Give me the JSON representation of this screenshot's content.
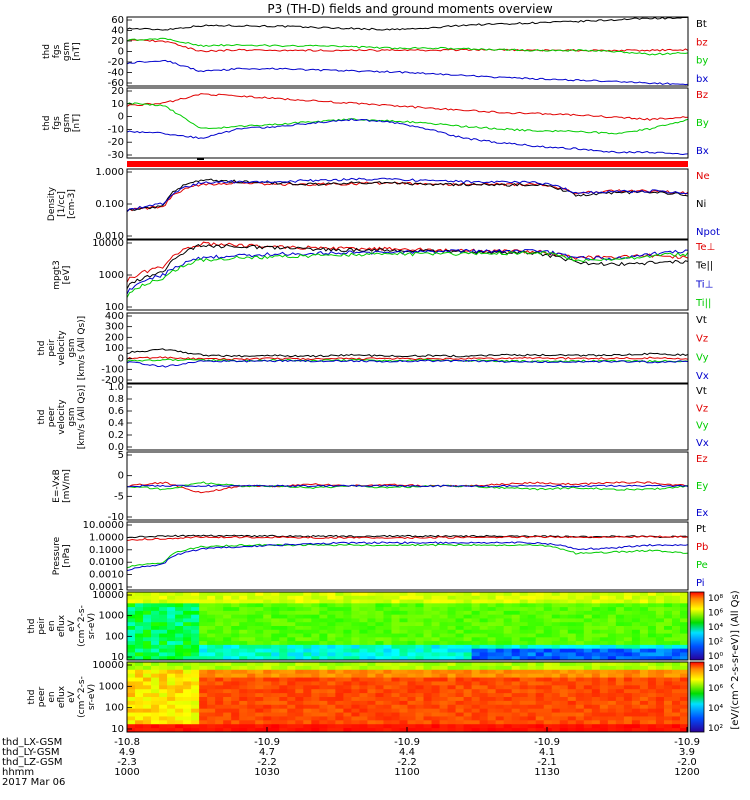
{
  "figure_title": "P3 (TH-D) fields and ground moments overview",
  "colors": {
    "black": "#000000",
    "red": "#e00000",
    "green": "#00cc00",
    "blue": "#0000cc",
    "cb_low": "#2a0099",
    "cb_high": "#ff0000"
  },
  "chart_data": [
    {
      "type": "line",
      "ylabel_lines": [
        "thd",
        "fgs",
        "gsm",
        "[nT]"
      ],
      "yticks": [
        "60",
        "40",
        "20",
        "0",
        "-20",
        "-40",
        "-60"
      ],
      "ylim": [
        -60,
        60
      ],
      "series": [
        {
          "name": "Bt",
          "color": "#000000",
          "values": [
            40,
            38,
            45,
            45,
            44,
            42,
            40,
            38,
            40,
            46,
            48,
            50,
            52,
            55,
            58,
            58
          ]
        },
        {
          "name": "bz",
          "color": "#e00000",
          "values": [
            20,
            18,
            0,
            3,
            2,
            2,
            2,
            2,
            2,
            3,
            3,
            2,
            2,
            2,
            2,
            3
          ]
        },
        {
          "name": "by",
          "color": "#00cc00",
          "values": [
            20,
            22,
            10,
            12,
            10,
            10,
            8,
            6,
            6,
            5,
            3,
            2,
            2,
            0,
            -5,
            -2
          ]
        },
        {
          "name": "bx",
          "color": "#0000cc",
          "values": [
            -20,
            -15,
            -35,
            -30,
            -30,
            -32,
            -34,
            -35,
            -38,
            -42,
            -45,
            -48,
            -50,
            -52,
            -55,
            -57
          ]
        }
      ]
    },
    {
      "type": "line",
      "ylabel_lines": [
        "thd",
        "fgs",
        "gsm",
        "[nT]"
      ],
      "yticks": [
        "20",
        "10",
        "0",
        "-10",
        "-20",
        "-30"
      ],
      "ylim": [
        -35,
        25
      ],
      "series": [
        {
          "name": "Bz",
          "color": "#e00000",
          "values": [
            10,
            12,
            20,
            18,
            16,
            14,
            12,
            10,
            8,
            6,
            4,
            3,
            2,
            0,
            -2,
            0
          ]
        },
        {
          "name": "By",
          "color": "#00cc00",
          "values": [
            12,
            10,
            -10,
            -8,
            -6,
            -4,
            -2,
            -3,
            -5,
            -8,
            -10,
            -12,
            -12,
            -14,
            -10,
            -2
          ]
        },
        {
          "name": "Bx",
          "color": "#0000cc",
          "values": [
            -12,
            -14,
            -18,
            -10,
            -8,
            -5,
            -2,
            -4,
            -10,
            -18,
            -22,
            -25,
            -27,
            -30,
            -30,
            -32
          ]
        }
      ]
    },
    {
      "type": "line",
      "log_scale": true,
      "ylabel_lines": [
        "Density",
        "[1/cc]",
        "[cm-3]"
      ],
      "yticks": [
        "1.000",
        "0.100",
        "0.010"
      ],
      "ylim": [
        0.001,
        1.5
      ],
      "series": [
        {
          "name": "Ne",
          "color": "#e00000",
          "values": [
            0.02,
            0.03,
            0.3,
            0.35,
            0.3,
            0.3,
            0.32,
            0.35,
            0.3,
            0.3,
            0.3,
            0.3,
            0.12,
            0.15,
            0.15,
            0.12
          ]
        },
        {
          "name": "Ni",
          "color": "#000000",
          "values": [
            0.02,
            0.03,
            0.5,
            0.4,
            0.35,
            0.3,
            0.35,
            0.35,
            0.3,
            0.3,
            0.28,
            0.3,
            0.1,
            0.12,
            0.14,
            0.1
          ]
        },
        {
          "name": "Npot",
          "color": "#0000cc",
          "values": [
            0.02,
            0.04,
            0.35,
            0.4,
            0.4,
            0.45,
            0.5,
            0.5,
            0.45,
            0.4,
            0.4,
            0.35,
            0.12,
            0.14,
            0.15,
            0.12
          ]
        }
      ]
    },
    {
      "type": "line",
      "log_scale": true,
      "ylabel_lines": [
        "mpgt3",
        "[eV]"
      ],
      "yticks": [
        "10000",
        "1000",
        "100"
      ],
      "ylim": [
        50,
        12000
      ],
      "series": [
        {
          "name": "Te⊥",
          "color": "#e00000",
          "values": [
            500,
            1500,
            9000,
            8000,
            7000,
            6500,
            6000,
            6000,
            5500,
            5200,
            5000,
            4800,
            3000,
            3200,
            3500,
            3000
          ]
        },
        {
          "name": "Te||",
          "color": "#000000",
          "values": [
            300,
            1000,
            8000,
            7000,
            6500,
            6000,
            5500,
            5500,
            5000,
            4800,
            4500,
            4200,
            2000,
            1800,
            2000,
            2200
          ]
        },
        {
          "name": "Ti⊥",
          "color": "#0000cc",
          "values": [
            200,
            800,
            3000,
            3500,
            4000,
            4200,
            4500,
            4500,
            4800,
            5000,
            5000,
            5200,
            3000,
            2800,
            4000,
            5000
          ]
        },
        {
          "name": "Ti||",
          "color": "#00cc00",
          "values": [
            150,
            600,
            2500,
            3000,
            3200,
            3500,
            3800,
            4000,
            4000,
            4200,
            4200,
            4500,
            2500,
            2500,
            3500,
            4000
          ]
        }
      ]
    },
    {
      "type": "line",
      "ylabel_lines": [
        "thd",
        "peir",
        "velocity",
        "gsm",
        "[km/s (All Qs)]"
      ],
      "yticks": [
        "400",
        "300",
        "200",
        "100",
        "0",
        "-100",
        "-200"
      ],
      "ylim": [
        -200,
        400
      ],
      "series": [
        {
          "name": "Vt",
          "color": "#000000",
          "values": [
            60,
            90,
            40,
            30,
            35,
            30,
            40,
            30,
            35,
            30,
            40,
            40,
            35,
            40,
            50,
            40
          ]
        },
        {
          "name": "Vz",
          "color": "#e00000",
          "values": [
            10,
            20,
            5,
            5,
            10,
            5,
            8,
            10,
            5,
            8,
            10,
            15,
            10,
            12,
            15,
            10
          ]
        },
        {
          "name": "Vy",
          "color": "#00cc00",
          "values": [
            -10,
            0,
            -5,
            -10,
            -5,
            -8,
            -5,
            -10,
            -5,
            -8,
            -10,
            -15,
            -12,
            -10,
            -15,
            -10
          ]
        },
        {
          "name": "Vx",
          "color": "#0000cc",
          "values": [
            -20,
            -60,
            -10,
            -15,
            -10,
            -12,
            -10,
            -15,
            -10,
            -12,
            -15,
            -20,
            -18,
            -15,
            -20,
            -15
          ]
        }
      ]
    },
    {
      "type": "line",
      "ylabel_lines": [
        "thd",
        "peer",
        "velocity",
        "gsm",
        "[km/s (All Qs)]"
      ],
      "yticks": [
        "1.0",
        "0.8",
        "0.6",
        "0.4",
        "0.2",
        "0.0"
      ],
      "ylim": [
        0,
        1
      ],
      "series": [
        {
          "name": "Vt",
          "color": "#000000",
          "values": []
        },
        {
          "name": "Vz",
          "color": "#e00000",
          "values": []
        },
        {
          "name": "Vy",
          "color": "#00cc00",
          "values": []
        },
        {
          "name": "Vx",
          "color": "#0000cc",
          "values": []
        }
      ]
    },
    {
      "type": "line",
      "ylabel_lines": [
        "E=-VxB",
        "[mV/m]"
      ],
      "yticks": [
        "5",
        "0",
        "-5",
        "-10"
      ],
      "ylim": [
        -10,
        10
      ],
      "series": [
        {
          "name": "Ez",
          "color": "#e00000",
          "values": [
            0,
            1,
            -2,
            0,
            0,
            0.5,
            0,
            0.5,
            0,
            0,
            0.5,
            1,
            0.5,
            1,
            1,
            0
          ]
        },
        {
          "name": "Ey",
          "color": "#00cc00",
          "values": [
            0,
            -1,
            1,
            0,
            0,
            -0.5,
            0,
            -0.5,
            0,
            0,
            -0.5,
            -1,
            -0.5,
            -1,
            -1,
            0
          ]
        },
        {
          "name": "Ex",
          "color": "#0000cc",
          "values": [
            0,
            0,
            0,
            0,
            0,
            0,
            0,
            0,
            0,
            0,
            0,
            0,
            0,
            0,
            0,
            0
          ]
        }
      ]
    },
    {
      "type": "line",
      "log_scale": true,
      "ylabel_lines": [
        "Pressure",
        "[nPa]"
      ],
      "yticks": [
        "10.0000",
        "1.0000",
        "0.1000",
        "0.0100",
        "0.0010",
        "0.0001"
      ],
      "ylim": [
        0.0001,
        10
      ],
      "series": [
        {
          "name": "Pt",
          "color": "#000000",
          "values": [
            0.8,
            0.9,
            1,
            0.95,
            0.95,
            0.9,
            0.9,
            0.9,
            0.9,
            0.9,
            0.9,
            0.9,
            0.8,
            0.85,
            0.85,
            0.8
          ]
        },
        {
          "name": "Pb",
          "color": "#e00000",
          "values": [
            0.5,
            0.6,
            0.8,
            0.75,
            0.75,
            0.7,
            0.7,
            0.7,
            0.7,
            0.75,
            0.75,
            0.8,
            0.8,
            0.8,
            0.85,
            0.85
          ]
        },
        {
          "name": "Pe",
          "color": "#00cc00",
          "values": [
            0.005,
            0.01,
            0.15,
            0.2,
            0.2,
            0.2,
            0.2,
            0.2,
            0.2,
            0.2,
            0.2,
            0.2,
            0.05,
            0.06,
            0.08,
            0.05
          ]
        },
        {
          "name": "Pi",
          "color": "#0000cc",
          "values": [
            0.003,
            0.008,
            0.1,
            0.15,
            0.2,
            0.25,
            0.3,
            0.3,
            0.3,
            0.3,
            0.3,
            0.3,
            0.1,
            0.12,
            0.2,
            0.2
          ]
        }
      ]
    },
    {
      "type": "heatmap",
      "ylabel_lines": [
        "thd",
        "peir",
        "en",
        "eflux",
        "eV",
        "(cm^2-s-",
        "sr-eV)"
      ],
      "yticks": [
        "10000",
        "1000",
        "100",
        "10"
      ],
      "colorbar_ticks": [
        "10⁸",
        "10⁶",
        "10⁴",
        "10²",
        "10⁰"
      ],
      "colorbar_label": "[eV/(cm^2-s-sr-eV)] (All Qs)"
    },
    {
      "type": "heatmap",
      "ylabel_lines": [
        "thd",
        "peer",
        "en",
        "eflux",
        "eV",
        "(cm^2-s-",
        "sr-eV)"
      ],
      "yticks": [
        "10000",
        "1000",
        "100",
        "10"
      ],
      "colorbar_ticks": [
        "10⁸",
        "10⁶",
        "10⁴",
        "10²"
      ],
      "colorbar_label": "[eV/(cm^2-s-sr-eV)] (All Qs)"
    }
  ],
  "x_axis": {
    "row_labels": [
      "thd_LX-GSM",
      "thd_LY-GSM",
      "thd_LZ-GSM",
      "hhmm",
      "2017 Mar 06"
    ],
    "columns": [
      [
        "-10.8",
        "4.9",
        "-2.3",
        "1000"
      ],
      [
        "-10.9",
        "4.7",
        "-2.2",
        "1030"
      ],
      [
        "-10.9",
        "4.4",
        "-2.2",
        "1100"
      ],
      [
        "-10.9",
        "4.1",
        "-2.1",
        "1130"
      ],
      [
        "-10.9",
        "3.9",
        "-2.0",
        "1200"
      ]
    ]
  }
}
